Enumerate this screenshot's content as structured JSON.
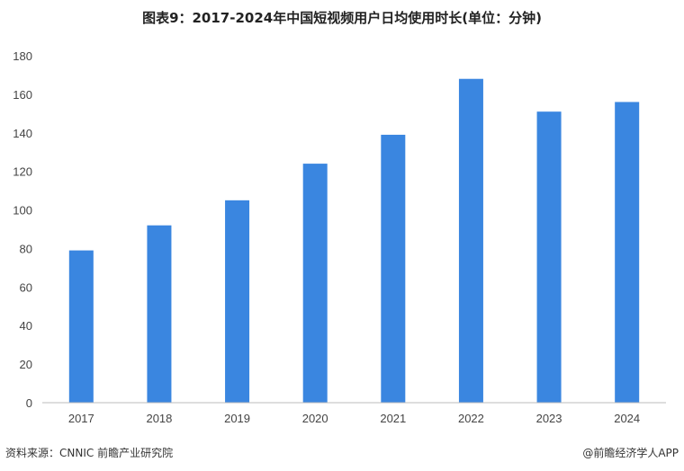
{
  "header": {
    "title": "图表9：2017-2024年中国短视频用户日均使用时长(单位：分钟)"
  },
  "footer": {
    "source": "资料来源：CNNIC 前瞻产业研究院",
    "brand": "@前瞻经济学人APP"
  },
  "colors": {
    "bar": "#3a86e0",
    "axis": "#bbbbbb"
  },
  "chart_data": {
    "type": "bar",
    "categories": [
      "2017",
      "2018",
      "2019",
      "2020",
      "2021",
      "2022",
      "2023",
      "2024"
    ],
    "values": [
      79,
      92,
      105,
      124,
      139,
      168,
      151,
      156
    ],
    "ylim": [
      0,
      180
    ],
    "yticks": [
      0,
      20,
      40,
      60,
      80,
      100,
      120,
      140,
      160,
      180
    ],
    "grid": false
  }
}
